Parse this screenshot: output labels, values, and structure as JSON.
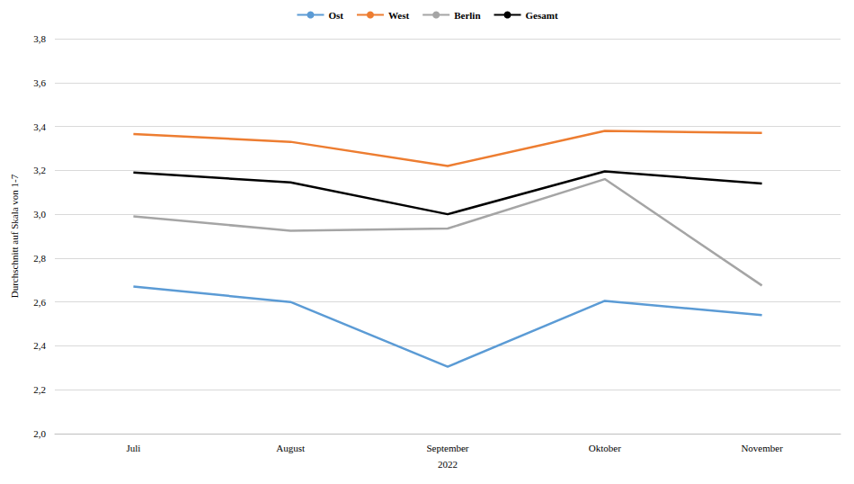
{
  "chart_data": {
    "type": "line",
    "x_label": "2022",
    "y_label": "Durchschnitt auf Skala von 1-7",
    "categories": [
      "Juli",
      "August",
      "September",
      "Oktober",
      "November"
    ],
    "series": [
      {
        "name": "Ost",
        "color": "#5b9bd5",
        "values": [
          2.67,
          2.6,
          2.305,
          2.605,
          2.54
        ]
      },
      {
        "name": "West",
        "color": "#ed7d31",
        "values": [
          3.365,
          3.33,
          3.22,
          3.38,
          3.37
        ]
      },
      {
        "name": "Berlin",
        "color": "#a5a5a5",
        "values": [
          2.99,
          2.925,
          2.935,
          3.16,
          2.675
        ]
      },
      {
        "name": "Gesamt",
        "color": "#000000",
        "values": [
          3.19,
          3.145,
          3.0,
          3.195,
          3.14
        ]
      }
    ],
    "ylim": [
      2.0,
      3.8
    ],
    "yticks": [
      {
        "value": 2.0,
        "label": "2,0"
      },
      {
        "value": 2.2,
        "label": "2,2"
      },
      {
        "value": 2.4,
        "label": "2,4"
      },
      {
        "value": 2.6,
        "label": "2,6"
      },
      {
        "value": 2.8,
        "label": "2,8"
      },
      {
        "value": 3.0,
        "label": "3,0"
      },
      {
        "value": 3.2,
        "label": "3,2"
      },
      {
        "value": 3.4,
        "label": "3,4"
      },
      {
        "value": 3.6,
        "label": "3,6"
      },
      {
        "value": 3.8,
        "label": "3,8"
      }
    ],
    "grid": true,
    "legend": "top"
  }
}
